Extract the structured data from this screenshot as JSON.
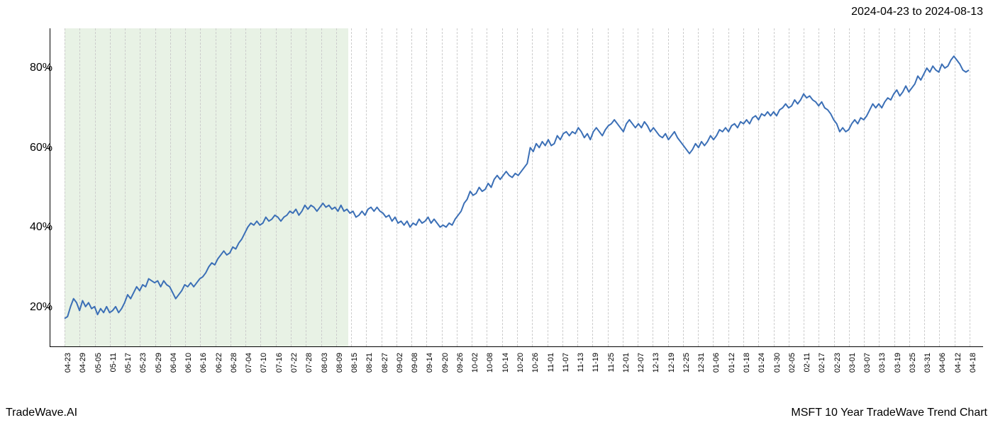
{
  "header": {
    "date_range": "2024-04-23 to 2024-08-13"
  },
  "footer": {
    "left": "TradeWave.AI",
    "right": "MSFT 10 Year TradeWave Trend Chart"
  },
  "chart": {
    "type": "line",
    "background_color": "#ffffff",
    "line_color": "#3b6fb6",
    "line_width": 2,
    "grid_color": "#cccccc",
    "grid_dash": "3,3",
    "axis_color": "#000000",
    "highlight_band": {
      "fill": "#d9ead3",
      "opacity": 0.6,
      "x_start_index": 0,
      "x_end_index": 18.8
    },
    "ylim": [
      10,
      90
    ],
    "y_ticks": [
      20,
      40,
      60,
      80
    ],
    "y_tick_labels": [
      "20%",
      "40%",
      "60%",
      "80%"
    ],
    "y_tick_fontsize": 16,
    "x_tick_labels": [
      "04-23",
      "04-29",
      "05-05",
      "05-11",
      "05-17",
      "05-23",
      "05-29",
      "06-04",
      "06-10",
      "06-16",
      "06-22",
      "06-28",
      "07-04",
      "07-10",
      "07-16",
      "07-22",
      "07-28",
      "08-03",
      "08-09",
      "08-15",
      "08-21",
      "08-27",
      "09-02",
      "09-08",
      "09-14",
      "09-20",
      "09-26",
      "10-02",
      "10-08",
      "10-14",
      "10-20",
      "10-26",
      "11-01",
      "11-07",
      "11-13",
      "11-19",
      "11-25",
      "12-01",
      "12-07",
      "12-13",
      "12-19",
      "12-25",
      "12-31",
      "01-06",
      "01-12",
      "01-18",
      "01-24",
      "01-30",
      "02-05",
      "02-11",
      "02-17",
      "02-23",
      "03-01",
      "03-07",
      "03-13",
      "03-19",
      "03-25",
      "03-31",
      "04-06",
      "04-12",
      "04-18"
    ],
    "x_tick_fontsize": 11,
    "x_tick_rotation": -90,
    "series": {
      "values": [
        17,
        17.5,
        20,
        22,
        21,
        19,
        21.5,
        20,
        21,
        19.5,
        20,
        18,
        19.5,
        18.5,
        20,
        18.5,
        19,
        20,
        18.5,
        19.5,
        21,
        23,
        22,
        23.5,
        25,
        24,
        25.5,
        25,
        27,
        26.5,
        26,
        26.5,
        25,
        26.5,
        25.5,
        25,
        23.5,
        22,
        23,
        24,
        25.5,
        25,
        26,
        25,
        26,
        27,
        27.5,
        28.5,
        30,
        31,
        30.5,
        32,
        33,
        34,
        33,
        33.5,
        35,
        34.5,
        36,
        37,
        38.5,
        40,
        41,
        40.5,
        41.5,
        40.5,
        41,
        42.5,
        41.5,
        42,
        43,
        42.5,
        41.5,
        42.5,
        43,
        44,
        43.5,
        44.5,
        43,
        44,
        45.5,
        44.5,
        45.5,
        45,
        44,
        45,
        46,
        45,
        45.5,
        44.5,
        45,
        44,
        45.5,
        44,
        44.5,
        43.5,
        44,
        42.5,
        43,
        44,
        43,
        44.5,
        45,
        44,
        45,
        44,
        43.5,
        42.5,
        43,
        41.5,
        42.5,
        41,
        41.5,
        40.5,
        41.5,
        40,
        41,
        40.5,
        42,
        41,
        41.5,
        42.5,
        41,
        42,
        41,
        40,
        40.5,
        40,
        41,
        40.5,
        42,
        43,
        44,
        46,
        47,
        49,
        48,
        48.5,
        50,
        49,
        49.5,
        51,
        50,
        52,
        53,
        52,
        53,
        54,
        53,
        52.5,
        53.5,
        53,
        54,
        55,
        56,
        60,
        59,
        61,
        60,
        61.5,
        60.5,
        62,
        60.5,
        61,
        63,
        62,
        63.5,
        64,
        63,
        64,
        63.5,
        65,
        64,
        62.5,
        63.5,
        62,
        64,
        65,
        64,
        63,
        64.5,
        65.5,
        66,
        67,
        66,
        65,
        64,
        66,
        67,
        66,
        65,
        66,
        65,
        66.5,
        65.5,
        64,
        65,
        64,
        63,
        62.5,
        63.5,
        62,
        63,
        64,
        62.5,
        61.5,
        60.5,
        59.5,
        58.5,
        59.5,
        61,
        60,
        61.5,
        60.5,
        61.5,
        63,
        62,
        63,
        64.5,
        64,
        65,
        64,
        65.5,
        66,
        65,
        66.5,
        66,
        67,
        66,
        67.5,
        68,
        67,
        68.5,
        68,
        69,
        68,
        69,
        68,
        69.5,
        70,
        71,
        70,
        70.5,
        72,
        71,
        72,
        73.5,
        72.5,
        73,
        72,
        71.5,
        70.5,
        71.5,
        70,
        69.5,
        68.5,
        67,
        66,
        64,
        65,
        64,
        64.5,
        66,
        67,
        66,
        67.5,
        67,
        68,
        69.5,
        71,
        70,
        71,
        70,
        71.5,
        72.5,
        72,
        73.5,
        74.5,
        73,
        74,
        75.5,
        74,
        75,
        76,
        78,
        77,
        78.5,
        80,
        79,
        80.5,
        79.5,
        79,
        81,
        80,
        80.5,
        82,
        83,
        82,
        81,
        79.5,
        79,
        79.5
      ]
    }
  }
}
